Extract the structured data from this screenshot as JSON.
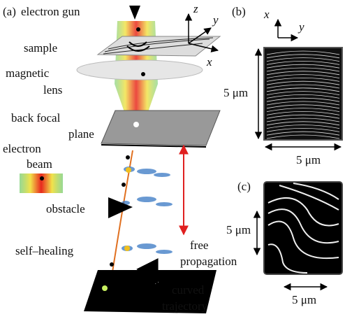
{
  "panel_a": {
    "label": "(a)",
    "labels": {
      "electron_gun": "electron gun",
      "sample": "sample",
      "magnetic_lens": [
        "magnetic",
        "lens"
      ],
      "back_focal_plane": [
        "back focal",
        "plane"
      ],
      "electron_beam": [
        "electron",
        "beam"
      ],
      "obstacle": "obstacle",
      "self_healing": "self–healing",
      "free_propagation": [
        "free",
        "propagation"
      ],
      "curved_trajectory": [
        "curved",
        "trajectory"
      ]
    },
    "axes": {
      "z": "z",
      "y": "y",
      "x": "x"
    }
  },
  "panel_b": {
    "label": "(b)",
    "axes": {
      "x": "x",
      "y": "y"
    },
    "height_scale": "5 μm",
    "width_scale": "5 μm"
  },
  "panel_c": {
    "label": "(c)",
    "height_scale": "5 μm",
    "width_scale": "5 μm"
  }
}
